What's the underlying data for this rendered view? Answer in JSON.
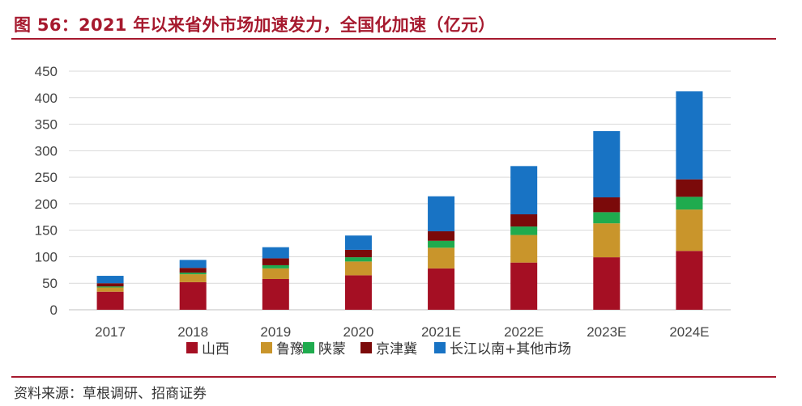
{
  "header": {
    "title": "图 56：2021 年以来省外市场加速发力，全国化加速（亿元）"
  },
  "footer": {
    "source": "资料来源：草根调研、招商证券"
  },
  "colors": {
    "title": "#a6192e",
    "grid": "#d9d9d9",
    "series": [
      "#a50f23",
      "#c9952b",
      "#1fab4e",
      "#7b0a0a",
      "#1873c4"
    ]
  },
  "chart_data": {
    "type": "bar",
    "stacked": true,
    "title": "2021 年以来省外市场加速发力，全国化加速（亿元）",
    "xlabel": "",
    "ylabel": "",
    "ylim": [
      0,
      450
    ],
    "yticks": [
      0,
      50,
      100,
      150,
      200,
      250,
      300,
      350,
      400,
      450
    ],
    "grid": true,
    "legend_position": "bottom",
    "categories": [
      "2017",
      "2018",
      "2019",
      "2020",
      "2021E",
      "2022E",
      "2023E",
      "2024E"
    ],
    "series": [
      {
        "name": "山西",
        "values": [
          34,
          52,
          58,
          65,
          78,
          89,
          99,
          111
        ]
      },
      {
        "name": "鲁豫",
        "values": [
          8,
          15,
          20,
          26,
          39,
          52,
          64,
          78
        ]
      },
      {
        "name": "陕蒙",
        "values": [
          2,
          3,
          6,
          8,
          13,
          16,
          21,
          24
        ]
      },
      {
        "name": "京津冀",
        "values": [
          6,
          9,
          13,
          14,
          18,
          23,
          28,
          33
        ]
      },
      {
        "name": "长江以南+其他市场",
        "values": [
          14,
          15,
          21,
          27,
          66,
          91,
          125,
          166
        ]
      }
    ]
  }
}
